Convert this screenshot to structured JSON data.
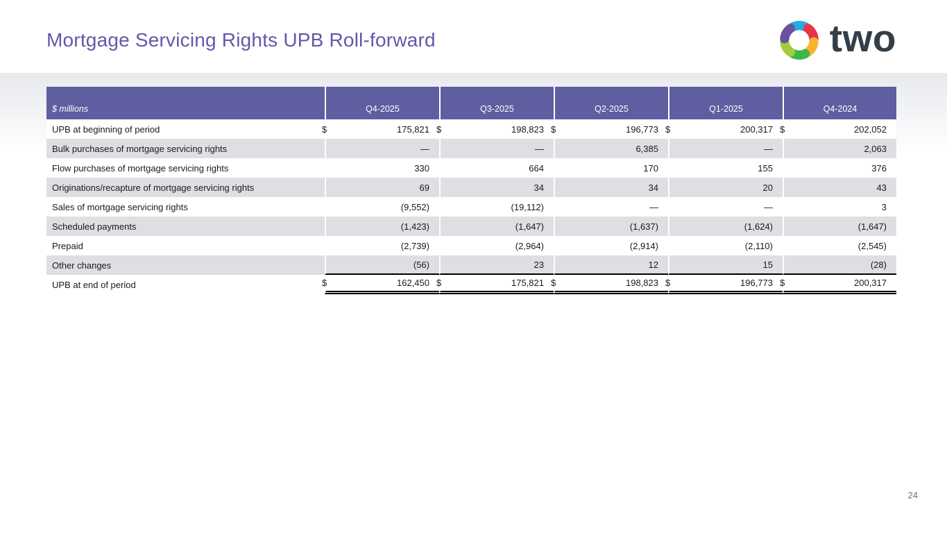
{
  "slide": {
    "title": "Mortgage Servicing Rights UPB Roll-forward",
    "page_number": "24"
  },
  "logo": {
    "text": "two",
    "segment_colors": {
      "top": "#29abe2",
      "upper_right": "#e8344a",
      "lower_right": "#f9b42d",
      "bottom": "#3cb54a",
      "lower_left": "#a3cd3a",
      "upper_left": "#6c519f"
    },
    "wordmark_color": "#333e48"
  },
  "colors": {
    "header_purple": "#5e5ea1",
    "stripe_gray": "#dfdfe3",
    "title_purple": "#6159a8",
    "page_number_gray": "#6a6a9a",
    "band_gray": "#e7e9ed"
  },
  "table": {
    "unit_label": "$ millions",
    "columns": [
      "Q4-2025",
      "Q3-2025",
      "Q2-2025",
      "Q1-2025",
      "Q4-2024"
    ],
    "rows": [
      {
        "label": "UPB at beginning of period",
        "dollar": true,
        "values": [
          "175,821",
          "198,823",
          "196,773",
          "200,317",
          "202,052"
        ]
      },
      {
        "label": "Bulk purchases of mortgage servicing rights",
        "dollar": false,
        "values": [
          "—",
          "—",
          "6,385",
          "—",
          "2,063"
        ]
      },
      {
        "label": "Flow purchases of mortgage servicing rights",
        "dollar": false,
        "values": [
          "330",
          "664",
          "170",
          "155",
          "376"
        ]
      },
      {
        "label": "Originations/recapture of mortgage servicing rights",
        "dollar": false,
        "values": [
          "69",
          "34",
          "34",
          "20",
          "43"
        ]
      },
      {
        "label": "Sales of mortgage servicing rights",
        "dollar": false,
        "values": [
          "(9,552)",
          "(19,112)",
          "—",
          "—",
          "3"
        ]
      },
      {
        "label": "Scheduled payments",
        "dollar": false,
        "values": [
          "(1,423)",
          "(1,647)",
          "(1,637)",
          "(1,624)",
          "(1,647)"
        ]
      },
      {
        "label": "Prepaid",
        "dollar": false,
        "values": [
          "(2,739)",
          "(2,964)",
          "(2,914)",
          "(2,110)",
          "(2,545)"
        ]
      },
      {
        "label": "Other changes",
        "dollar": false,
        "values": [
          "(56)",
          "23",
          "12",
          "15",
          "(28)"
        ]
      },
      {
        "label": "UPB at end of period",
        "dollar": true,
        "values": [
          "162,450",
          "175,821",
          "198,823",
          "196,773",
          "200,317"
        ]
      }
    ]
  }
}
